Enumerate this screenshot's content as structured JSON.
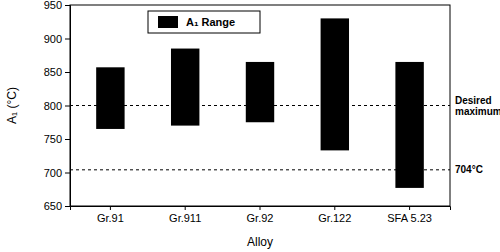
{
  "chart_data": {
    "type": "bar",
    "x_label": "Alloy",
    "y_label": "A₁ (°C)",
    "categories": [
      "Gr.91",
      "Gr.911",
      "Gr.92",
      "Gr.122",
      "SFA 5.23"
    ],
    "series": [
      {
        "name": "A₁ Range",
        "color": "#000000",
        "low": [
          765,
          770,
          775,
          733,
          677
        ],
        "high": [
          857,
          885,
          865,
          930,
          865
        ]
      }
    ],
    "annotations": [
      {
        "value": 800,
        "label": "Desired maximum"
      },
      {
        "value": 704,
        "label": "704°C"
      }
    ],
    "ylim": [
      650,
      950
    ],
    "yticks": [
      650,
      700,
      750,
      800,
      850,
      900,
      950
    ],
    "legend": "top-left",
    "grid": false
  }
}
